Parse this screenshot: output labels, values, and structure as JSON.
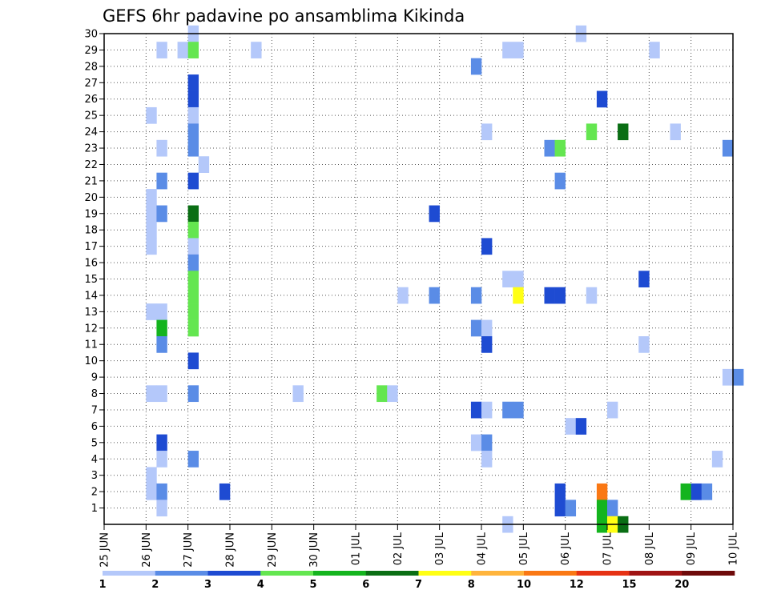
{
  "chart_data": {
    "type": "heatmap",
    "title": "GEFS 6hr padavine po ansamblima Kikinda",
    "xlabel": "",
    "ylabel": "",
    "x_start": "2024-06-25",
    "x_end": "2024-07-10",
    "x_ticks": [
      "25 JUN",
      "26 JUN",
      "27 JUN",
      "28 JUN",
      "29 JUN",
      "30 JUN",
      "01 JUL",
      "02 JUL",
      "03 JUL",
      "04 JUL",
      "05 JUL",
      "06 JUL",
      "07 JUL",
      "08 JUL",
      "09 JUL",
      "10 JUL"
    ],
    "y_ticks": [
      1,
      2,
      3,
      4,
      5,
      6,
      7,
      8,
      9,
      10,
      11,
      12,
      13,
      14,
      15,
      16,
      17,
      18,
      19,
      20,
      21,
      22,
      23,
      24,
      25,
      26,
      27,
      28,
      29,
      30
    ],
    "grid": true,
    "colorbar": {
      "labels": [
        "1",
        "2",
        "3",
        "4",
        "5",
        "6",
        "7",
        "8",
        "10",
        "12",
        "15",
        "20"
      ],
      "colors": [
        "#b4c8fa",
        "#5a8ce6",
        "#1e4bd2",
        "#64e650",
        "#14b41e",
        "#0a6e14",
        "#ffff14",
        "#ffb43c",
        "#fa7814",
        "#e63214",
        "#a01414",
        "#6e0a0a"
      ]
    },
    "cells": [
      {
        "t": "26 JUN 06Z",
        "m": 29,
        "c": 0
      },
      {
        "t": "26 JUN 06Z",
        "m": 23,
        "c": 0
      },
      {
        "t": "26 JUN 00Z",
        "m": 25,
        "c": 0
      },
      {
        "t": "26 JUN 06Z",
        "m": 21,
        "c": 1
      },
      {
        "t": "26 JUN 00Z",
        "m": 20,
        "c": 0
      },
      {
        "t": "26 JUN 00Z",
        "m": 19,
        "c": 0
      },
      {
        "t": "26 JUN 06Z",
        "m": 19,
        "c": 1
      },
      {
        "t": "26 JUN 00Z",
        "m": 18,
        "c": 0
      },
      {
        "t": "26 JUN 00Z",
        "m": 17,
        "c": 0
      },
      {
        "t": "26 JUN 00Z",
        "m": 13,
        "c": 0
      },
      {
        "t": "26 JUN 06Z",
        "m": 13,
        "c": 0
      },
      {
        "t": "26 JUN 06Z",
        "m": 12,
        "c": 4
      },
      {
        "t": "26 JUN 06Z",
        "m": 11,
        "c": 1
      },
      {
        "t": "26 JUN 00Z",
        "m": 8,
        "c": 0
      },
      {
        "t": "26 JUN 06Z",
        "m": 8,
        "c": 0
      },
      {
        "t": "26 JUN 06Z",
        "m": 5,
        "c": 2
      },
      {
        "t": "26 JUN 06Z",
        "m": 4,
        "c": 0
      },
      {
        "t": "26 JUN 00Z",
        "m": 3,
        "c": 0
      },
      {
        "t": "26 JUN 00Z",
        "m": 2,
        "c": 0
      },
      {
        "t": "26 JUN 06Z",
        "m": 2,
        "c": 1
      },
      {
        "t": "26 JUN 06Z",
        "m": 1,
        "c": 0
      },
      {
        "t": "26 JUN 18Z",
        "m": 29,
        "c": 0
      },
      {
        "t": "27 JUN 00Z",
        "m": 30,
        "c": 0
      },
      {
        "t": "27 JUN 00Z",
        "m": 29,
        "c": 3
      },
      {
        "t": "27 JUN 00Z",
        "m": 27,
        "c": 2
      },
      {
        "t": "27 JUN 00Z",
        "m": 26,
        "c": 2
      },
      {
        "t": "27 JUN 00Z",
        "m": 25,
        "c": 0
      },
      {
        "t": "27 JUN 00Z",
        "m": 24,
        "c": 1
      },
      {
        "t": "27 JUN 00Z",
        "m": 23,
        "c": 1
      },
      {
        "t": "27 JUN 06Z",
        "m": 22,
        "c": 0
      },
      {
        "t": "27 JUN 00Z",
        "m": 21,
        "c": 2
      },
      {
        "t": "27 JUN 00Z",
        "m": 19,
        "c": 5
      },
      {
        "t": "27 JUN 00Z",
        "m": 18,
        "c": 3
      },
      {
        "t": "27 JUN 00Z",
        "m": 17,
        "c": 0
      },
      {
        "t": "27 JUN 00Z",
        "m": 16,
        "c": 1
      },
      {
        "t": "27 JUN 00Z",
        "m": 15,
        "c": 3
      },
      {
        "t": "27 JUN 00Z",
        "m": 14,
        "c": 3
      },
      {
        "t": "27 JUN 00Z",
        "m": 13,
        "c": 3
      },
      {
        "t": "27 JUN 00Z",
        "m": 12,
        "c": 3
      },
      {
        "t": "27 JUN 00Z",
        "m": 10,
        "c": 2
      },
      {
        "t": "27 JUN 00Z",
        "m": 8,
        "c": 1
      },
      {
        "t": "27 JUN 00Z",
        "m": 4,
        "c": 1
      },
      {
        "t": "27 JUN 18Z",
        "m": 2,
        "c": 2
      },
      {
        "t": "28 JUN 12Z",
        "m": 29,
        "c": 0
      },
      {
        "t": "29 JUN 12Z",
        "m": 8,
        "c": 0
      },
      {
        "t": "01 JUL 12Z",
        "m": 8,
        "c": 3
      },
      {
        "t": "01 JUL 18Z",
        "m": 8,
        "c": 0
      },
      {
        "t": "02 JUL 18Z",
        "m": 14,
        "c": 1
      },
      {
        "t": "02 JUL 00Z",
        "m": 14,
        "c": 0
      },
      {
        "t": "02 JUL 18Z",
        "m": 19,
        "c": 2
      },
      {
        "t": "03 JUL 18Z",
        "m": 28,
        "c": 1
      },
      {
        "t": "04 JUL 00Z",
        "m": 24,
        "c": 0
      },
      {
        "t": "04 JUL 00Z",
        "m": 17,
        "c": 2
      },
      {
        "t": "03 JUL 18Z",
        "m": 14,
        "c": 1
      },
      {
        "t": "03 JUL 18Z",
        "m": 12,
        "c": 1
      },
      {
        "t": "04 JUL 00Z",
        "m": 12,
        "c": 0
      },
      {
        "t": "04 JUL 00Z",
        "m": 11,
        "c": 2
      },
      {
        "t": "03 JUL 18Z",
        "m": 7,
        "c": 2
      },
      {
        "t": "04 JUL 00Z",
        "m": 7,
        "c": 0
      },
      {
        "t": "03 JUL 18Z",
        "m": 5,
        "c": 0
      },
      {
        "t": "04 JUL 00Z",
        "m": 5,
        "c": 1
      },
      {
        "t": "04 JUL 00Z",
        "m": 4,
        "c": 0
      },
      {
        "t": "04 JUL 12Z",
        "m": 29,
        "c": 0
      },
      {
        "t": "04 JUL 18Z",
        "m": 29,
        "c": 0
      },
      {
        "t": "04 JUL 12Z",
        "m": 15,
        "c": 0
      },
      {
        "t": "04 JUL 18Z",
        "m": 15,
        "c": 0
      },
      {
        "t": "04 JUL 18Z",
        "m": 14,
        "c": 6
      },
      {
        "t": "04 JUL 12Z",
        "m": 7,
        "c": 1
      },
      {
        "t": "04 JUL 18Z",
        "m": 7,
        "c": 1
      },
      {
        "t": "04 JUL 12Z",
        "m": 0,
        "c": 0
      },
      {
        "t": "05 JUL 12Z",
        "m": 23,
        "c": 1
      },
      {
        "t": "05 JUL 18Z",
        "m": 23,
        "c": 3
      },
      {
        "t": "05 JUL 18Z",
        "m": 21,
        "c": 1
      },
      {
        "t": "05 JUL 12Z",
        "m": 14,
        "c": 2
      },
      {
        "t": "05 JUL 18Z",
        "m": 14,
        "c": 2
      },
      {
        "t": "06 JUL 00Z",
        "m": 6,
        "c": 0
      },
      {
        "t": "06 JUL 06Z",
        "m": 6,
        "c": 2
      },
      {
        "t": "05 JUL 18Z",
        "m": 2,
        "c": 2
      },
      {
        "t": "05 JUL 18Z",
        "m": 1,
        "c": 2
      },
      {
        "t": "06 JUL 00Z",
        "m": 1,
        "c": 1
      },
      {
        "t": "06 JUL 06Z",
        "m": 30,
        "c": 0
      },
      {
        "t": "06 JUL 12Z",
        "m": 24,
        "c": 3
      },
      {
        "t": "06 JUL 12Z",
        "m": 14,
        "c": 0
      },
      {
        "t": "06 JUL 18Z",
        "m": 26,
        "c": 2
      },
      {
        "t": "07 JUL 06Z",
        "m": 24,
        "c": 5
      },
      {
        "t": "07 JUL 00Z",
        "m": 7,
        "c": 0
      },
      {
        "t": "06 JUL 18Z",
        "m": 2,
        "c": 8
      },
      {
        "t": "06 JUL 18Z",
        "m": 1,
        "c": 4
      },
      {
        "t": "07 JUL 00Z",
        "m": 1,
        "c": 1
      },
      {
        "t": "06 JUL 18Z",
        "m": 0,
        "c": 4
      },
      {
        "t": "07 JUL 00Z",
        "m": 0,
        "c": 6
      },
      {
        "t": "07 JUL 06Z",
        "m": 0,
        "c": 5
      },
      {
        "t": "07 JUL 18Z",
        "m": 15,
        "c": 2
      },
      {
        "t": "07 JUL 18Z",
        "m": 11,
        "c": 0
      },
      {
        "t": "08 JUL 00Z",
        "m": 29,
        "c": 0
      },
      {
        "t": "08 JUL 12Z",
        "m": 24,
        "c": 0
      },
      {
        "t": "08 JUL 18Z",
        "m": 2,
        "c": 4
      },
      {
        "t": "09 JUL 00Z",
        "m": 2,
        "c": 2
      },
      {
        "t": "09 JUL 06Z",
        "m": 2,
        "c": 1
      },
      {
        "t": "09 JUL 12Z",
        "m": 4,
        "c": 0
      },
      {
        "t": "09 JUL 18Z",
        "m": 23,
        "c": 1
      },
      {
        "t": "09 JUL 18Z",
        "m": 9,
        "c": 0
      },
      {
        "t": "10 JUL 00Z",
        "m": 9,
        "c": 1
      }
    ]
  }
}
